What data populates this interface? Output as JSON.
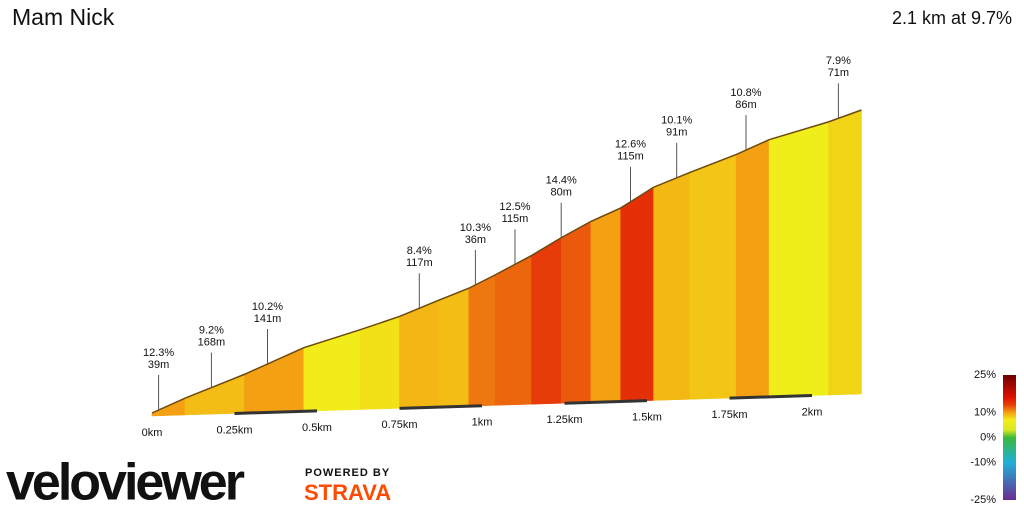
{
  "chart_data": {
    "type": "profile",
    "title": "Mam Nick",
    "subtitle": "2.1 km at 9.7%",
    "x": [
      0,
      0.1,
      0.28,
      0.46,
      0.63,
      0.75,
      0.87,
      0.96,
      1.04,
      1.15,
      1.24,
      1.33,
      1.42,
      1.52,
      1.63,
      1.77,
      1.87,
      2.05,
      2.15
    ],
    "values": [
      0,
      10,
      26,
      44,
      56,
      65,
      76,
      84,
      93,
      106,
      118,
      129,
      138,
      152,
      162,
      174,
      184,
      196,
      204
    ],
    "xlim": [
      0,
      2.15
    ],
    "ylim": [
      0,
      204
    ],
    "xticks": [
      {
        "value": 0,
        "label": "0km"
      },
      {
        "value": 0.25,
        "label": "0.25km"
      },
      {
        "value": 0.5,
        "label": "0.5km"
      },
      {
        "value": 0.75,
        "label": "0.75km"
      },
      {
        "value": 1,
        "label": "1km"
      },
      {
        "value": 1.25,
        "label": "1.25km"
      },
      {
        "value": 1.5,
        "label": "1.5km"
      },
      {
        "value": 1.75,
        "label": "1.75km"
      },
      {
        "value": 2,
        "label": "2km"
      }
    ],
    "line_color": "#6b4a10",
    "annotations": [
      {
        "x": 0.02,
        "values": [
          12.3,
          39
        ],
        "value_labels": [
          "12.3%",
          "39m"
        ]
      },
      {
        "x": 0.18,
        "values": [
          9.2,
          168
        ],
        "value_labels": [
          "9.2%",
          "168m"
        ]
      },
      {
        "x": 0.35,
        "values": [
          10.2,
          141
        ],
        "value_labels": [
          "10.2%",
          "141m"
        ]
      },
      {
        "x": 0.81,
        "values": [
          8.4,
          117
        ],
        "value_labels": [
          "8.4%",
          "117m"
        ]
      },
      {
        "x": 0.98,
        "values": [
          10.3,
          36
        ],
        "value_labels": [
          "10.3%",
          "36m"
        ]
      },
      {
        "x": 1.1,
        "values": [
          12.5,
          115
        ],
        "value_labels": [
          "12.5%",
          "115m"
        ]
      },
      {
        "x": 1.24,
        "values": [
          14.4,
          80
        ],
        "value_labels": [
          "14.4%",
          "80m"
        ]
      },
      {
        "x": 1.45,
        "values": [
          12.6,
          115
        ],
        "value_labels": [
          "12.6%",
          "115m"
        ]
      },
      {
        "x": 1.59,
        "values": [
          10.1,
          91
        ],
        "value_labels": [
          "10.1%",
          "91m"
        ]
      },
      {
        "x": 1.8,
        "values": [
          10.8,
          86
        ],
        "value_labels": [
          "10.8%",
          "86m"
        ]
      },
      {
        "x": 2.08,
        "values": [
          7.9,
          71
        ],
        "value_labels": [
          "7.9%",
          "71m"
        ]
      }
    ],
    "colorscale": {
      "values": [
        -25,
        -10,
        0,
        3,
        7,
        10,
        13,
        16,
        25
      ],
      "colors": [
        "#6a2c90",
        "#20b0d8",
        "#3cb83c",
        "#d8e820",
        "#f2ee1a",
        "#f3a012",
        "#e8400a",
        "#e01000",
        "#6b0000"
      ],
      "lim": [
        -25,
        25
      ],
      "ticks": [
        {
          "value": 25,
          "label": "25%"
        },
        {
          "value": 10,
          "label": "10%"
        },
        {
          "value": 0,
          "label": "0%"
        },
        {
          "value": -10,
          "label": "-10%"
        },
        {
          "value": -25,
          "label": "-25%"
        }
      ]
    }
  },
  "branding": {
    "logo": "veloviewer",
    "powered_by": "POWERED BY",
    "partner": "STRAVA"
  }
}
